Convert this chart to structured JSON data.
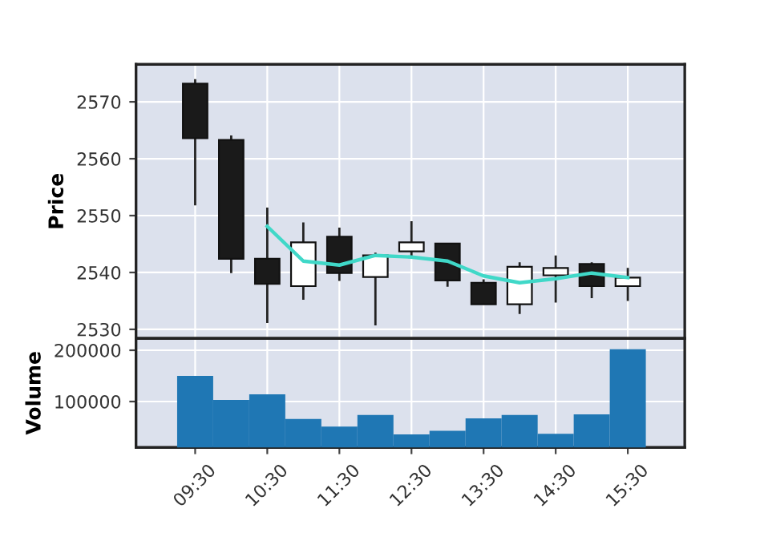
{
  "chart_data": [
    {
      "type": "candlestick",
      "ylabel": "Price",
      "x": [
        9.5,
        10,
        10.5,
        11,
        11.5,
        12,
        12.5,
        13,
        13.5,
        14,
        14.5,
        15,
        15.5
      ],
      "ohlc": [
        [
          2573.2,
          2574.0,
          2551.8,
          2563.6
        ],
        [
          2563.3,
          2564.1,
          2539.9,
          2542.4
        ],
        [
          2542.4,
          2551.4,
          2531.1,
          2538.0
        ],
        [
          2537.6,
          2548.8,
          2535.2,
          2545.3
        ],
        [
          2546.3,
          2547.9,
          2538.5,
          2539.9
        ],
        [
          2539.2,
          2543.5,
          2530.7,
          2543.0
        ],
        [
          2543.7,
          2549.0,
          2542.6,
          2545.3
        ],
        [
          2545.1,
          2545.1,
          2537.5,
          2538.6
        ],
        [
          2538.2,
          2538.8,
          2534.4,
          2534.4
        ],
        [
          2534.4,
          2541.8,
          2532.7,
          2541.0
        ],
        [
          2539.5,
          2543.0,
          2534.7,
          2540.8
        ],
        [
          2541.5,
          2541.8,
          2535.5,
          2537.6
        ],
        [
          2537.6,
          2540.8,
          2535.0,
          2539.1
        ]
      ],
      "series": [
        {
          "type": "line",
          "color": "#40d8c8",
          "x": [
            10.5,
            11,
            11.5,
            12,
            12.5,
            13,
            13.5,
            14,
            14.5,
            15,
            15.5
          ],
          "values": [
            2548.1,
            2542.0,
            2541.3,
            2543.0,
            2542.7,
            2542.0,
            2539.4,
            2538.2,
            2538.9,
            2539.9,
            2539.1
          ]
        }
      ],
      "xlim": [
        8.68,
        16.29
      ],
      "xticks": [
        {
          "value": 9.5,
          "label": null
        },
        {
          "value": 10.5,
          "label": null
        },
        {
          "value": 11.5,
          "label": null
        },
        {
          "value": 12.5,
          "label": null
        },
        {
          "value": 13.5,
          "label": null
        },
        {
          "value": 14.5,
          "label": null
        },
        {
          "value": 15.5,
          "label": null
        }
      ],
      "ylim": [
        2528.4,
        2576.6
      ],
      "yticks": [
        2530,
        2540,
        2550,
        2560,
        2570
      ],
      "grid": true,
      "tick_labels": "y"
    },
    {
      "type": "bar",
      "ylabel": "Volume",
      "x": [
        9.5,
        10,
        10.5,
        11,
        11.5,
        12,
        12.5,
        13,
        13.5,
        14,
        14.5,
        15,
        15.5
      ],
      "values": [
        150000,
        103000,
        114000,
        66000,
        51000,
        74000,
        36000,
        43000,
        67000,
        74000,
        37000,
        75000,
        202000
      ],
      "color": "#1f77b4",
      "xlim": [
        8.68,
        16.29
      ],
      "xticks": [
        {
          "value": 9.5,
          "label": "09:30"
        },
        {
          "value": 10.5,
          "label": "10:30"
        },
        {
          "value": 11.5,
          "label": "11:30"
        },
        {
          "value": 12.5,
          "label": "12:30"
        },
        {
          "value": 13.5,
          "label": "13:30"
        },
        {
          "value": 14.5,
          "label": "14:30"
        },
        {
          "value": 15.5,
          "label": "15:30"
        }
      ],
      "ylim": [
        10500,
        223000
      ],
      "yticks": [
        100000,
        200000
      ],
      "grid": true
    }
  ]
}
